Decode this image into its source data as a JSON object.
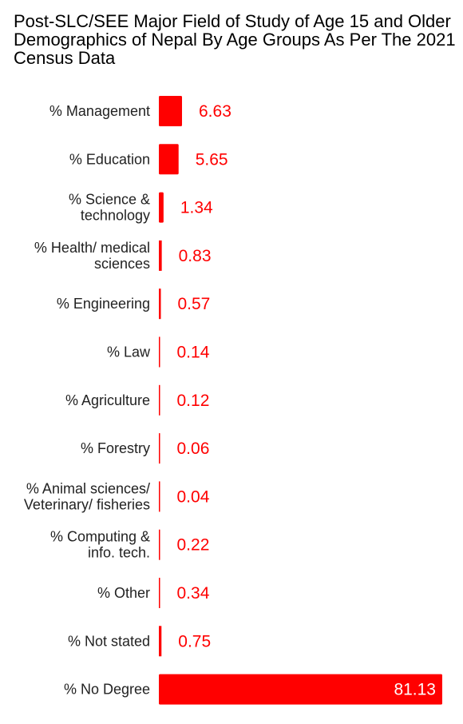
{
  "chart_data": {
    "type": "bar",
    "orientation": "horizontal",
    "title": "Post-SLC/SEE Major Field of Study of Age 15 and Older Demographics of Nepal By Age Groups As Per The 2021 Census Data",
    "categories": [
      "% Management",
      "% Education",
      "% Science & technology",
      "% Health/ medical sciences",
      "% Engineering",
      "% Law",
      "% Agriculture",
      "% Forestry",
      "% Animal sciences/ Veterinary/ fisheries",
      "% Computing & info. tech.",
      "% Other",
      "% Not stated",
      "% No Degree"
    ],
    "category_lines": [
      [
        "% Management"
      ],
      [
        "% Education"
      ],
      [
        "% Science &",
        "technology"
      ],
      [
        "% Health/ medical",
        "sciences"
      ],
      [
        "% Engineering"
      ],
      [
        "% Law"
      ],
      [
        "% Agriculture"
      ],
      [
        "% Forestry"
      ],
      [
        "% Animal sciences/",
        "Veterinary/ fisheries"
      ],
      [
        "% Computing &",
        "info. tech."
      ],
      [
        "% Other"
      ],
      [
        "% Not stated"
      ],
      [
        "% No Degree"
      ]
    ],
    "values": [
      6.63,
      5.65,
      1.34,
      0.83,
      0.57,
      0.14,
      0.12,
      0.06,
      0.04,
      0.22,
      0.34,
      0.75,
      81.13
    ],
    "value_labels": [
      "6.63",
      "5.65",
      "1.34",
      "0.83",
      "0.57",
      "0.14",
      "0.12",
      "0.06",
      "0.04",
      "0.22",
      "0.34",
      "0.75",
      "81.13"
    ],
    "xlim": [
      0,
      81.13
    ],
    "xlabel": "",
    "ylabel": "",
    "grid": false,
    "legend": "none",
    "bar_color": "#ff0000",
    "value_label_color": "#ff0000",
    "value_label_inside_color": "#ffffff"
  }
}
